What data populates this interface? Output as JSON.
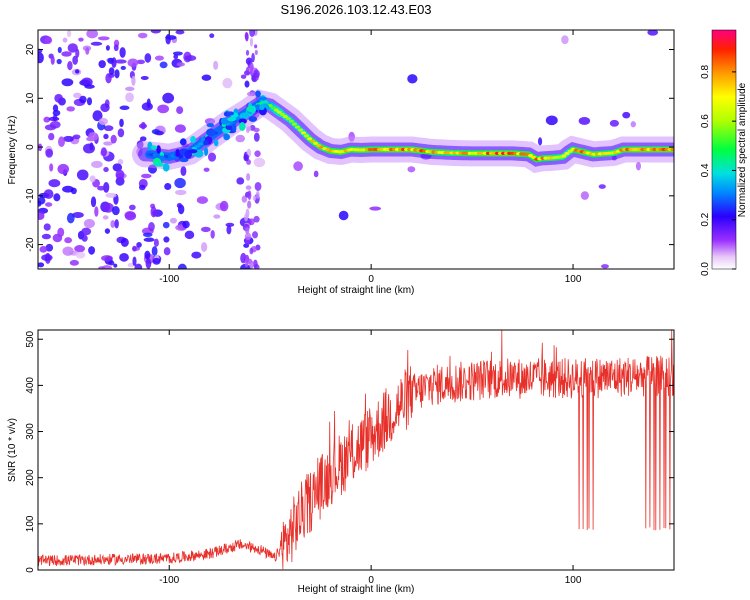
{
  "title": "S196.2026.103.12.43.E03",
  "chart_data": [
    {
      "type": "heatmap",
      "xlabel": "Height of straight line (km)",
      "ylabel": "Frequency (Hz)",
      "xlim": [
        -165,
        150
      ],
      "ylim": [
        -25,
        24
      ],
      "xticks": [
        -100,
        0,
        100
      ],
      "yticks": [
        20,
        10,
        0,
        -10,
        -20
      ],
      "colorbar": {
        "label": "Normalized spectral amplitude",
        "range": [
          0,
          0.97
        ],
        "ticks": [
          0.0,
          0.2,
          0.4,
          0.6,
          0.8
        ]
      },
      "ridge": {
        "x": [
          -110,
          -100,
          -90,
          -80,
          -70,
          -62,
          -55,
          -50,
          -45,
          -40,
          -35,
          -30,
          -25,
          -20,
          -15,
          -10,
          -5,
          0,
          10,
          20,
          30,
          40,
          50,
          60,
          70,
          78,
          82,
          85,
          90,
          95,
          98,
          100,
          110,
          120,
          125,
          130,
          140,
          150
        ],
        "y": [
          -1.5,
          -2,
          -1,
          2,
          5,
          7,
          9,
          8.5,
          7,
          5.5,
          3.5,
          1.5,
          0,
          -0.8,
          -1,
          -0.5,
          -0.6,
          -0.5,
          -0.5,
          -0.5,
          -1,
          -1.2,
          -1.3,
          -1.3,
          -1.3,
          -1.5,
          -2.5,
          -2.3,
          -2.2,
          -2,
          -1,
          -0.5,
          -1.5,
          -1.2,
          -0.5,
          -0.5,
          -0.5,
          -0.5
        ],
        "amplitude": [
          0.3,
          0.35,
          0.4,
          0.35,
          0.35,
          0.35,
          0.5,
          0.65,
          0.75,
          0.7,
          0.7,
          0.85,
          0.85,
          0.9,
          0.92,
          0.9,
          0.9,
          0.92,
          0.95,
          0.95,
          0.9,
          0.85,
          0.9,
          0.95,
          0.95,
          0.9,
          0.92,
          0.9,
          0.85,
          0.8,
          0.75,
          0.9,
          0.9,
          0.85,
          0.9,
          0.95,
          0.95,
          0.95
        ]
      }
    },
    {
      "type": "line",
      "xlabel": "Height of straight line (km)",
      "ylabel": "SNR (10 * v/v)",
      "xlim": [
        -165,
        150
      ],
      "ylim": [
        0,
        520
      ],
      "xticks": [
        -100,
        0,
        100
      ],
      "yticks": [
        0,
        100,
        200,
        300,
        400,
        500
      ],
      "series_color": "#e8302a",
      "trend": {
        "x": [
          -165,
          -100,
          -80,
          -65,
          -55,
          -48,
          -42,
          -35,
          -20,
          0,
          10,
          20,
          30,
          60,
          100,
          130,
          150
        ],
        "y": [
          20,
          25,
          35,
          55,
          45,
          25,
          60,
          120,
          210,
          290,
          340,
          380,
          400,
          415,
          415,
          420,
          420
        ]
      },
      "dropouts_x": [
        103,
        105,
        107,
        108,
        110,
        136,
        138,
        140,
        141,
        143,
        145,
        146,
        148
      ]
    }
  ]
}
